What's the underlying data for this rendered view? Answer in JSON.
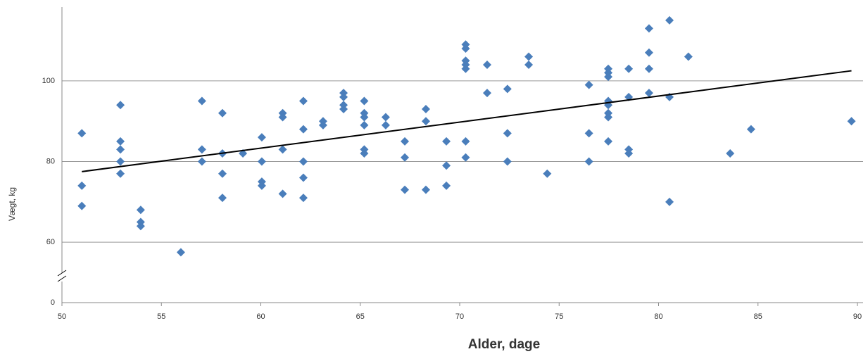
{
  "chart_data": {
    "type": "scatter",
    "xlabel": "Alder, dage",
    "ylabel": "Vægt, kg",
    "color": "#4a7ebb",
    "x": [
      51,
      51,
      51,
      52.94,
      52.94,
      52.94,
      52.94,
      52.94,
      53.96,
      53.96,
      53.96,
      55.98,
      57.04,
      57.04,
      57.04,
      58.07,
      58.07,
      58.07,
      58.07,
      59.1,
      60.05,
      60.05,
      60.05,
      60.05,
      61.1,
      61.1,
      61.1,
      61.1,
      62.14,
      62.14,
      62.14,
      62.14,
      62.14,
      63.13,
      63.13,
      64.16,
      64.16,
      64.16,
      64.16,
      65.2,
      65.2,
      65.2,
      65.2,
      65.2,
      65.2,
      66.28,
      66.28,
      67.24,
      67.24,
      67.24,
      68.3,
      68.3,
      68.3,
      69.33,
      69.33,
      69.33,
      70.3,
      70.3,
      70.3,
      70.3,
      70.3,
      70.3,
      70.3,
      71.38,
      71.38,
      72.4,
      72.4,
      72.4,
      73.47,
      73.47,
      74.4,
      76.5,
      76.5,
      76.5,
      77.47,
      77.47,
      77.47,
      77.47,
      77.47,
      77.47,
      77.47,
      77.47,
      78.5,
      78.5,
      78.5,
      78.5,
      79.52,
      79.52,
      79.52,
      79.52,
      80.55,
      80.55,
      80.55,
      81.5,
      83.6,
      84.65,
      89.7
    ],
    "y": [
      87,
      74,
      69,
      94,
      85,
      83,
      80,
      77,
      68,
      65,
      64,
      57.5,
      95,
      83,
      80,
      92,
      82,
      77,
      71,
      82,
      86,
      80,
      75,
      74,
      92,
      91,
      83,
      72,
      95,
      88,
      80,
      76,
      71,
      90,
      89,
      97,
      96,
      94,
      93,
      95,
      92,
      91,
      89,
      83,
      82,
      91,
      89,
      85,
      81,
      73,
      93,
      90,
      73,
      85,
      79,
      74,
      109,
      108,
      105,
      104,
      103,
      85,
      81,
      104,
      97,
      98,
      87,
      80,
      106,
      104,
      77,
      99,
      87,
      80,
      103,
      102,
      101,
      95,
      94,
      92,
      91,
      85,
      103,
      96,
      83,
      82,
      113,
      107,
      103,
      97,
      115,
      96,
      70,
      106,
      82,
      88,
      90
    ],
    "trendline": {
      "x": [
        51,
        89.7
      ],
      "y": [
        77.5,
        102.5
      ],
      "color": "#000000"
    },
    "xlim": [
      50,
      90
    ],
    "xticks": [
      50,
      55,
      60,
      65,
      70,
      75,
      80,
      85,
      90
    ],
    "ylim": [
      0,
      118.3
    ],
    "yticks": [
      0,
      60,
      80,
      100
    ],
    "axis_break": [
      0,
      52
    ],
    "grid": true
  }
}
